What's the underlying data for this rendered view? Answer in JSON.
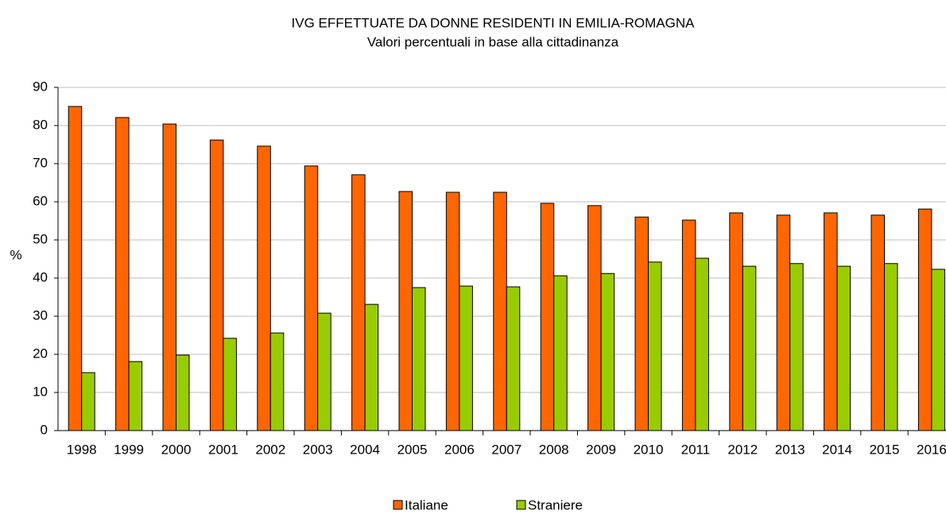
{
  "chart_data": {
    "type": "bar",
    "title": "IVG EFFETTUATE DA DONNE RESIDENTI IN EMILIA-ROMAGNA",
    "subtitle": "Valori percentuali in base alla cittadinanza",
    "y_label": "%",
    "categories": [
      "1998",
      "1999",
      "2000",
      "2001",
      "2002",
      "2003",
      "2004",
      "2005",
      "2006",
      "2007",
      "2008",
      "2009",
      "2010",
      "2011",
      "2012",
      "2013",
      "2014",
      "2015",
      "2016"
    ],
    "series": [
      {
        "name": "Italiane",
        "color": "#ff6600",
        "values": [
          85,
          82.1,
          80.4,
          76.2,
          74.6,
          69.4,
          67.1,
          62.7,
          62.5,
          62.5,
          59.6,
          59,
          56,
          55.2,
          57.1,
          56.5,
          57.1,
          56.5,
          58.1
        ]
      },
      {
        "name": "Straniere",
        "color": "#99cc00",
        "values": [
          15.2,
          18.1,
          19.8,
          24.2,
          25.6,
          30.8,
          33.1,
          37.5,
          37.9,
          37.7,
          40.6,
          41.2,
          44.2,
          45.2,
          43.1,
          43.8,
          43.1,
          43.8,
          42.3
        ]
      }
    ],
    "ylim": [
      0,
      90
    ],
    "yticks": [
      0,
      10,
      20,
      30,
      40,
      50,
      60,
      70,
      80,
      90
    ],
    "grid": true,
    "legend": "bottom"
  }
}
